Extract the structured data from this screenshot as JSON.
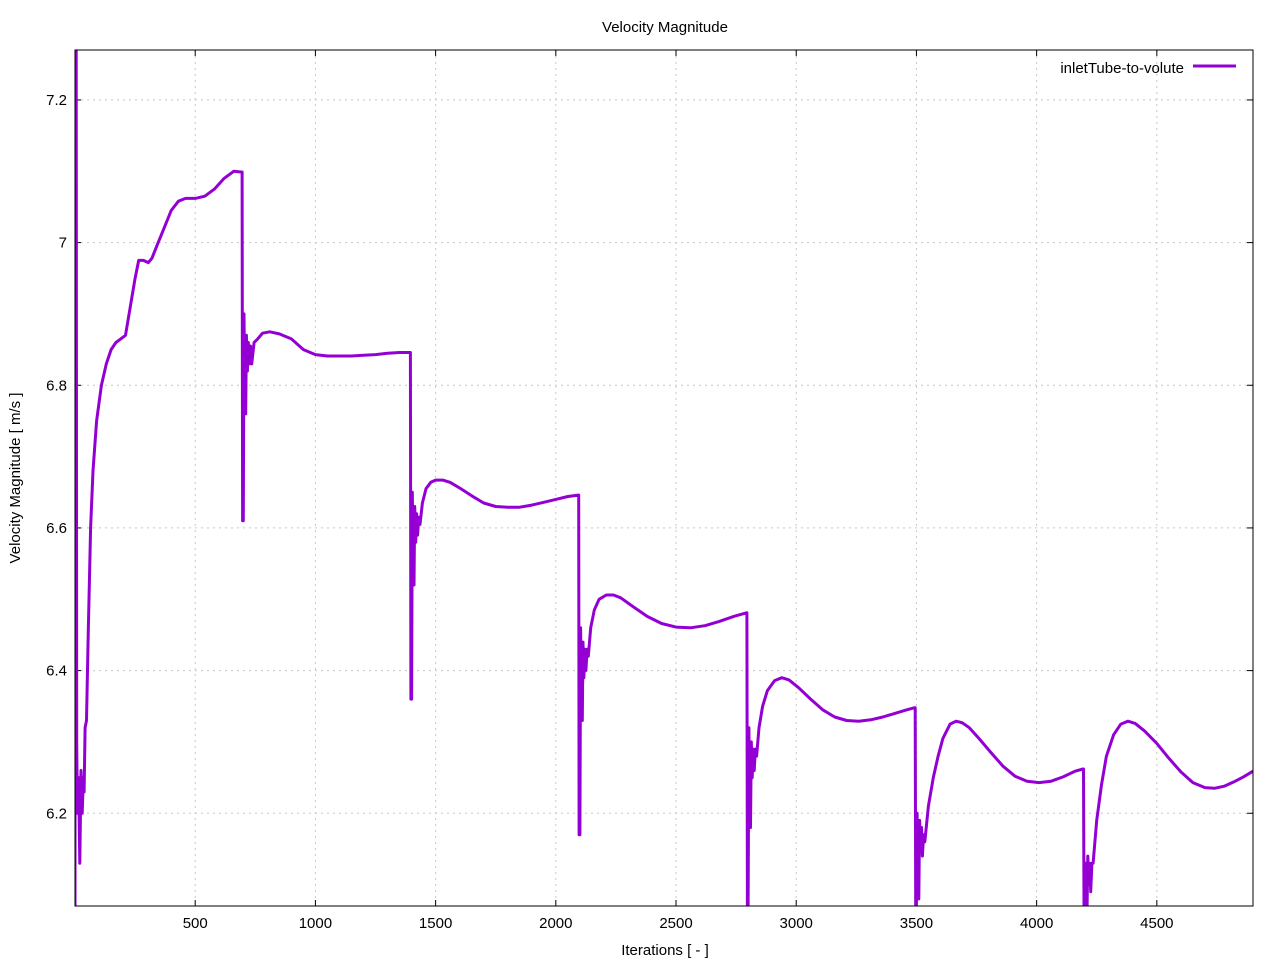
{
  "chart_data": {
    "type": "line",
    "title": "Velocity Magnitude",
    "xlabel": "Iterations [ - ]",
    "ylabel": "Velocity Magnitude [ m/s ]",
    "xlim": [
      0,
      4900
    ],
    "ylim": [
      6.07,
      7.27
    ],
    "xticks": [
      500,
      1000,
      1500,
      2000,
      2500,
      3000,
      3500,
      4000,
      4500
    ],
    "yticks": [
      6.2,
      6.4,
      6.6,
      6.8,
      7,
      7.2
    ],
    "grid": true,
    "legend_position": "top-right",
    "series": [
      {
        "name": "inletTube-to-volute",
        "color": "#9400d3",
        "points": [
          [
            0,
            6.07
          ],
          [
            2,
            7.27
          ],
          [
            5,
            7.27
          ],
          [
            7,
            6.3
          ],
          [
            10,
            6.2
          ],
          [
            15,
            6.25
          ],
          [
            20,
            6.13
          ],
          [
            25,
            6.26
          ],
          [
            30,
            6.2
          ],
          [
            35,
            6.25
          ],
          [
            38,
            6.23
          ],
          [
            42,
            6.32
          ],
          [
            48,
            6.33
          ],
          [
            55,
            6.45
          ],
          [
            65,
            6.6
          ],
          [
            75,
            6.68
          ],
          [
            90,
            6.75
          ],
          [
            110,
            6.8
          ],
          [
            130,
            6.83
          ],
          [
            150,
            6.85
          ],
          [
            170,
            6.86
          ],
          [
            190,
            6.865
          ],
          [
            210,
            6.87
          ],
          [
            230,
            6.91
          ],
          [
            250,
            6.95
          ],
          [
            265,
            6.975
          ],
          [
            285,
            6.975
          ],
          [
            305,
            6.972
          ],
          [
            320,
            6.978
          ],
          [
            340,
            6.995
          ],
          [
            370,
            7.02
          ],
          [
            400,
            7.045
          ],
          [
            430,
            7.058
          ],
          [
            460,
            7.062
          ],
          [
            500,
            7.062
          ],
          [
            540,
            7.065
          ],
          [
            580,
            7.075
          ],
          [
            620,
            7.09
          ],
          [
            660,
            7.1
          ],
          [
            690,
            7.099
          ],
          [
            695,
            7.099
          ],
          [
            697,
            6.61
          ],
          [
            700,
            6.61
          ],
          [
            703,
            6.9
          ],
          [
            706,
            6.79
          ],
          [
            710,
            6.76
          ],
          [
            713,
            6.87
          ],
          [
            717,
            6.82
          ],
          [
            721,
            6.86
          ],
          [
            725,
            6.83
          ],
          [
            730,
            6.855
          ],
          [
            735,
            6.83
          ],
          [
            745,
            6.86
          ],
          [
            760,
            6.865
          ],
          [
            780,
            6.873
          ],
          [
            810,
            6.875
          ],
          [
            850,
            6.872
          ],
          [
            900,
            6.865
          ],
          [
            950,
            6.85
          ],
          [
            1000,
            6.843
          ],
          [
            1050,
            6.841
          ],
          [
            1100,
            6.841
          ],
          [
            1150,
            6.841
          ],
          [
            1200,
            6.842
          ],
          [
            1250,
            6.843
          ],
          [
            1300,
            6.845
          ],
          [
            1350,
            6.846
          ],
          [
            1393,
            6.846
          ],
          [
            1395,
            6.846
          ],
          [
            1397,
            6.36
          ],
          [
            1400,
            6.36
          ],
          [
            1403,
            6.65
          ],
          [
            1406,
            6.56
          ],
          [
            1410,
            6.52
          ],
          [
            1413,
            6.63
          ],
          [
            1417,
            6.58
          ],
          [
            1421,
            6.62
          ],
          [
            1425,
            6.59
          ],
          [
            1430,
            6.615
          ],
          [
            1435,
            6.605
          ],
          [
            1445,
            6.635
          ],
          [
            1460,
            6.655
          ],
          [
            1480,
            6.664
          ],
          [
            1500,
            6.667
          ],
          [
            1530,
            6.667
          ],
          [
            1560,
            6.664
          ],
          [
            1600,
            6.656
          ],
          [
            1650,
            6.645
          ],
          [
            1700,
            6.635
          ],
          [
            1750,
            6.63
          ],
          [
            1800,
            6.629
          ],
          [
            1850,
            6.629
          ],
          [
            1900,
            6.632
          ],
          [
            1950,
            6.636
          ],
          [
            2000,
            6.64
          ],
          [
            2050,
            6.644
          ],
          [
            2093,
            6.646
          ],
          [
            2095,
            6.646
          ],
          [
            2097,
            6.17
          ],
          [
            2100,
            6.17
          ],
          [
            2103,
            6.46
          ],
          [
            2106,
            6.37
          ],
          [
            2110,
            6.33
          ],
          [
            2113,
            6.44
          ],
          [
            2117,
            6.39
          ],
          [
            2121,
            6.43
          ],
          [
            2125,
            6.4
          ],
          [
            2130,
            6.43
          ],
          [
            2135,
            6.42
          ],
          [
            2145,
            6.46
          ],
          [
            2160,
            6.485
          ],
          [
            2180,
            6.5
          ],
          [
            2210,
            6.506
          ],
          [
            2240,
            6.506
          ],
          [
            2270,
            6.502
          ],
          [
            2320,
            6.49
          ],
          [
            2380,
            6.476
          ],
          [
            2440,
            6.466
          ],
          [
            2500,
            6.461
          ],
          [
            2560,
            6.46
          ],
          [
            2620,
            6.463
          ],
          [
            2680,
            6.469
          ],
          [
            2740,
            6.476
          ],
          [
            2793,
            6.481
          ],
          [
            2795,
            6.481
          ],
          [
            2797,
            6.07
          ],
          [
            2800,
            6.07
          ],
          [
            2803,
            6.32
          ],
          [
            2806,
            6.22
          ],
          [
            2810,
            6.18
          ],
          [
            2813,
            6.3
          ],
          [
            2817,
            6.25
          ],
          [
            2821,
            6.29
          ],
          [
            2825,
            6.26
          ],
          [
            2830,
            6.29
          ],
          [
            2835,
            6.28
          ],
          [
            2845,
            6.32
          ],
          [
            2860,
            6.35
          ],
          [
            2880,
            6.372
          ],
          [
            2910,
            6.386
          ],
          [
            2940,
            6.39
          ],
          [
            2970,
            6.387
          ],
          [
            3010,
            6.376
          ],
          [
            3060,
            6.36
          ],
          [
            3110,
            6.345
          ],
          [
            3160,
            6.335
          ],
          [
            3210,
            6.33
          ],
          [
            3260,
            6.329
          ],
          [
            3310,
            6.331
          ],
          [
            3360,
            6.335
          ],
          [
            3410,
            6.34
          ],
          [
            3460,
            6.345
          ],
          [
            3493,
            6.348
          ],
          [
            3495,
            6.348
          ],
          [
            3497,
            6.07
          ],
          [
            3500,
            6.07
          ],
          [
            3503,
            6.2
          ],
          [
            3506,
            6.12
          ],
          [
            3510,
            6.08
          ],
          [
            3513,
            6.19
          ],
          [
            3517,
            6.15
          ],
          [
            3521,
            6.18
          ],
          [
            3525,
            6.14
          ],
          [
            3530,
            6.17
          ],
          [
            3535,
            6.16
          ],
          [
            3550,
            6.21
          ],
          [
            3570,
            6.25
          ],
          [
            3590,
            6.28
          ],
          [
            3610,
            6.305
          ],
          [
            3640,
            6.325
          ],
          [
            3665,
            6.329
          ],
          [
            3690,
            6.327
          ],
          [
            3720,
            6.32
          ],
          [
            3760,
            6.305
          ],
          [
            3810,
            6.285
          ],
          [
            3860,
            6.266
          ],
          [
            3910,
            6.252
          ],
          [
            3960,
            6.245
          ],
          [
            4010,
            6.243
          ],
          [
            4060,
            6.245
          ],
          [
            4110,
            6.251
          ],
          [
            4160,
            6.259
          ],
          [
            4193,
            6.262
          ],
          [
            4195,
            6.262
          ],
          [
            4197,
            6.07
          ],
          [
            4200,
            6.07
          ],
          [
            4203,
            6.13
          ],
          [
            4206,
            6.08
          ],
          [
            4210,
            6.07
          ],
          [
            4213,
            6.14
          ],
          [
            4217,
            6.1
          ],
          [
            4221,
            6.13
          ],
          [
            4225,
            6.09
          ],
          [
            4230,
            6.13
          ],
          [
            4235,
            6.13
          ],
          [
            4250,
            6.19
          ],
          [
            4270,
            6.24
          ],
          [
            4290,
            6.28
          ],
          [
            4320,
            6.31
          ],
          [
            4350,
            6.325
          ],
          [
            4380,
            6.329
          ],
          [
            4410,
            6.326
          ],
          [
            4450,
            6.315
          ],
          [
            4500,
            6.298
          ],
          [
            4550,
            6.277
          ],
          [
            4600,
            6.258
          ],
          [
            4650,
            6.243
          ],
          [
            4700,
            6.236
          ],
          [
            4740,
            6.235
          ],
          [
            4780,
            6.238
          ],
          [
            4820,
            6.244
          ],
          [
            4860,
            6.251
          ],
          [
            4900,
            6.259
          ]
        ]
      }
    ]
  }
}
